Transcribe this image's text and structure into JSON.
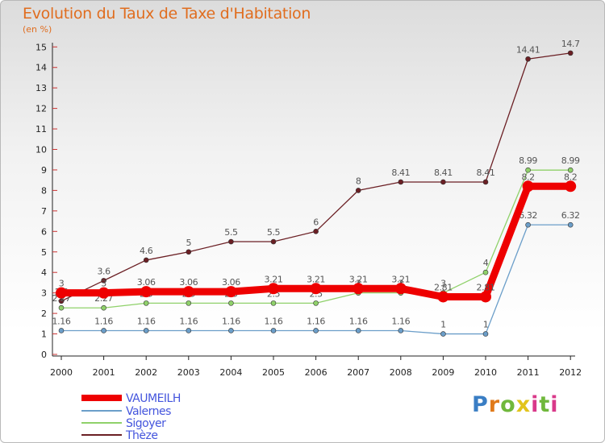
{
  "title": "Evolution du Taux de Taxe d'Habitation",
  "subtitle": "(en %)",
  "logo": {
    "text": "Proxiti"
  },
  "chart_data": {
    "type": "line",
    "title": "Evolution du Taux de Taxe d'Habitation",
    "ylabel": "(en %)",
    "xlabel": "",
    "ylim": [
      0,
      15
    ],
    "grid": false,
    "legend_position": "bottom-left",
    "x": [
      "2000",
      "2001",
      "2002",
      "2003",
      "2004",
      "2005",
      "2006",
      "2007",
      "2008",
      "2009",
      "2010",
      "2011",
      "2012"
    ],
    "yticks": [
      "0",
      "1",
      "2",
      "3",
      "4",
      "5",
      "6",
      "7",
      "8",
      "9",
      "10",
      "11",
      "12",
      "13",
      "14",
      "15"
    ],
    "series": [
      {
        "name": "Thèze",
        "color": "#6b1f24",
        "values": [
          2.6,
          3.6,
          4.6,
          5,
          5.5,
          5.5,
          6,
          8,
          8.41,
          8.41,
          8.41,
          14.41,
          14.7
        ],
        "labels": [
          "2.6",
          "3.6",
          "4.6",
          "5",
          "5.5",
          "5.5",
          "6",
          "8",
          "8.41",
          "8.41",
          "8.41",
          "14.41",
          "14.7"
        ]
      },
      {
        "name": "Sigoyer",
        "color": "#8fd16a",
        "values": [
          2.27,
          2.27,
          2.5,
          2.5,
          2.5,
          2.5,
          2.5,
          3,
          3,
          3,
          4,
          8.99,
          8.99
        ],
        "labels": [
          "2.27",
          "2.27",
          "2.5",
          "2.5",
          "2.5",
          "2.5",
          "2.5",
          "3",
          "3",
          "3",
          "4",
          "8.99",
          "8.99"
        ]
      },
      {
        "name": "Valernes",
        "color": "#6b9ec9",
        "values": [
          1.16,
          1.16,
          1.16,
          1.16,
          1.16,
          1.16,
          1.16,
          1.16,
          1.16,
          1,
          1,
          6.32,
          6.32
        ],
        "labels": [
          "1.16",
          "1.16",
          "1.16",
          "1.16",
          "1.16",
          "1.16",
          "1.16",
          "1.16",
          "1.16",
          "1",
          "1",
          "6.32",
          "6.32"
        ]
      },
      {
        "name": "VAUMEILH",
        "color": "#ee0000",
        "values": [
          3,
          3,
          3.06,
          3.06,
          3.06,
          3.21,
          3.21,
          3.21,
          3.21,
          2.81,
          2.81,
          8.2,
          8.2
        ],
        "labels": [
          "3",
          "3",
          "3.06",
          "3.06",
          "3.06",
          "3.21",
          "3.21",
          "3.21",
          "3.21",
          "2.81",
          "2.81",
          "8.2",
          "8.2"
        ]
      }
    ],
    "legend": [
      "VAUMEILH",
      "Valernes",
      "Sigoyer",
      "Thèze"
    ]
  }
}
